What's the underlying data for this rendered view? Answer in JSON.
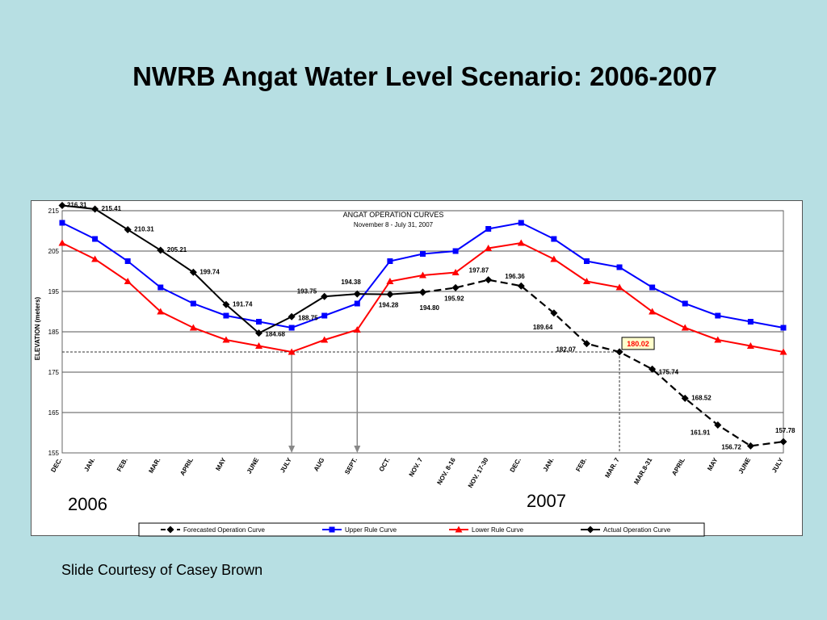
{
  "slide": {
    "title": "NWRB Angat Water Level Scenario: 2006-2007",
    "year_left": "2006",
    "year_right": "2007",
    "credit": "Slide Courtesy of Casey Brown"
  },
  "chart_data": {
    "type": "line",
    "title": "ANGAT OPERATION CURVES",
    "subtitle": "November 8 - July  31, 2007",
    "ylabel": "ELEVATION (meters)",
    "xlabel": "",
    "ylim": [
      155,
      215
    ],
    "yticks": [
      155,
      165,
      175,
      185,
      195,
      205,
      215
    ],
    "grid": true,
    "legend_position": "bottom",
    "categories": [
      "DEC.",
      "JAN.",
      "FEB.",
      "MAR.",
      "APRIL",
      "MAY",
      "JUNE",
      "JULY",
      "AUG",
      "SEPT.",
      "OCT.",
      "NOV. 7",
      "NOV. 8-16",
      "NOV. 17-30",
      "DEC.",
      "JAN.",
      "FEB.",
      "MAR. 7",
      "MAR.8-31",
      "APRIL",
      "MAY",
      "JUNE",
      "JULY"
    ],
    "series": [
      {
        "name": "Forecasted Operation Curve",
        "color": "#000000",
        "style": "dashed",
        "marker": "diamond",
        "values": [
          null,
          null,
          null,
          null,
          null,
          null,
          null,
          null,
          null,
          null,
          null,
          194.8,
          195.92,
          197.87,
          196.36,
          189.64,
          182.07,
          180.02,
          175.74,
          168.52,
          161.91,
          156.72,
          157.78
        ]
      },
      {
        "name": "Upper Rule Curve",
        "color": "#0000ff",
        "style": "solid",
        "marker": "square",
        "values": [
          212,
          208,
          202.5,
          196,
          192,
          189,
          187.5,
          186,
          189,
          192,
          202.5,
          204.3,
          205,
          210.5,
          212,
          208,
          202.5,
          201,
          196,
          192,
          189,
          187.5,
          186
        ]
      },
      {
        "name": "Lower Rule Curve",
        "color": "#ff0000",
        "style": "solid",
        "marker": "triangle",
        "values": [
          207,
          203,
          197.5,
          190,
          186,
          183,
          181.5,
          180,
          183,
          185.5,
          197.5,
          199,
          199.7,
          205.7,
          207,
          203,
          197.5,
          196,
          190,
          186,
          183,
          181.5,
          180
        ]
      },
      {
        "name": "Actual Operation Curve",
        "color": "#000000",
        "style": "solid",
        "marker": "diamond",
        "values": [
          216.31,
          215.41,
          210.31,
          205.21,
          199.74,
          191.74,
          184.68,
          188.75,
          193.75,
          194.38,
          194.28,
          194.8,
          null,
          null,
          null,
          null,
          null,
          null,
          null,
          null,
          null,
          null,
          null
        ]
      }
    ],
    "data_labels": [
      {
        "index": 0,
        "value": "216.31"
      },
      {
        "index": 1,
        "value": "215.41"
      },
      {
        "index": 2,
        "value": "210.31"
      },
      {
        "index": 3,
        "value": "205.21"
      },
      {
        "index": 4,
        "value": "199.74"
      },
      {
        "index": 5,
        "value": "191.74"
      },
      {
        "index": 6,
        "value": "184.68"
      },
      {
        "index": 7,
        "value": "188.75"
      },
      {
        "index": 8,
        "value": "193.75"
      },
      {
        "index": 9,
        "value": "194.38"
      },
      {
        "index": 10,
        "value": "194.28"
      },
      {
        "index": 11,
        "value": "194.80"
      },
      {
        "index": 12,
        "value": "195.92"
      },
      {
        "index": 13,
        "value": "197.87"
      },
      {
        "index": 14,
        "value": "196.36"
      },
      {
        "index": 15,
        "value": "189.64"
      },
      {
        "index": 16,
        "value": "182.07"
      },
      {
        "index": 17,
        "value": "180.02",
        "highlight": true
      },
      {
        "index": 18,
        "value": "175.74"
      },
      {
        "index": 19,
        "value": "168.52"
      },
      {
        "index": 20,
        "value": "161.91"
      },
      {
        "index": 21,
        "value": "156.72"
      },
      {
        "index": 22,
        "value": "157.78"
      }
    ],
    "reference_line_y": 180,
    "arrows_at": [
      7,
      9
    ]
  }
}
